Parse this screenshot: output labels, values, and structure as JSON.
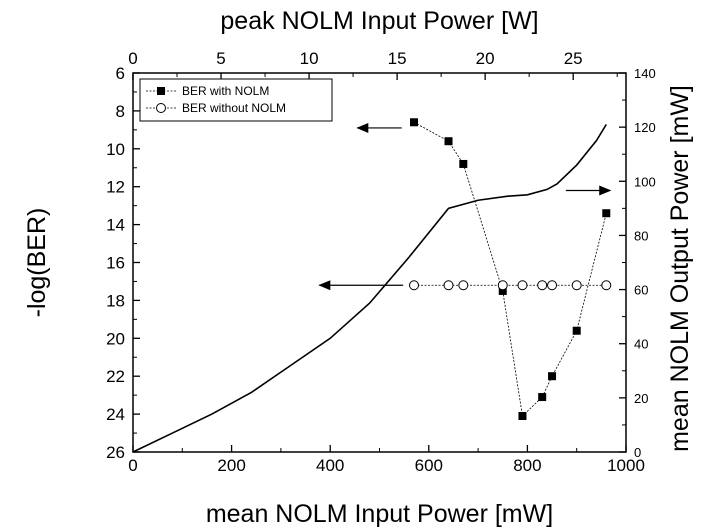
{
  "chart_data": {
    "type": "line",
    "x_bottom": {
      "label": "mean NOLM Input Power [mW]",
      "range": [
        0,
        1000
      ],
      "ticks": [
        0,
        200,
        400,
        600,
        800,
        1000
      ]
    },
    "x_top": {
      "label": "peak NOLM Input Power [W]",
      "range": [
        0,
        28
      ],
      "ticks": [
        0,
        5,
        10,
        15,
        20,
        25
      ]
    },
    "y_left": {
      "label": "-log(BER)",
      "range": [
        6,
        26
      ],
      "inverted": true,
      "ticks": [
        6,
        8,
        10,
        12,
        14,
        16,
        18,
        20,
        22,
        24,
        26
      ]
    },
    "y_right": {
      "label": "mean NOLM Output Power [mW]",
      "range": [
        0,
        140
      ],
      "ticks": [
        0,
        20,
        40,
        60,
        80,
        100,
        120,
        140
      ]
    },
    "series": [
      {
        "name": "BER with NOLM",
        "axis": "left",
        "marker": "filled-square",
        "x": [
          570,
          640,
          670,
          750,
          790,
          830,
          850,
          900,
          960
        ],
        "y": [
          8.6,
          9.6,
          10.8,
          17.5,
          24.1,
          23.1,
          22.0,
          19.6,
          13.4
        ]
      },
      {
        "name": "BER without NOLM",
        "axis": "left",
        "marker": "open-circle",
        "x": [
          570,
          640,
          670,
          750,
          790,
          830,
          850,
          900,
          960
        ],
        "y": [
          17.2,
          17.2,
          17.2,
          17.2,
          17.2,
          17.2,
          17.2,
          17.2,
          17.2
        ]
      },
      {
        "axis": "right",
        "marker": "none",
        "x": [
          0,
          80,
          160,
          240,
          320,
          400,
          480,
          560,
          640,
          700,
          760,
          800,
          840,
          860,
          900,
          940,
          960
        ],
        "y": [
          0,
          7,
          14,
          22,
          32,
          42,
          55,
          72,
          90,
          93,
          94.5,
          95,
          97,
          99,
          106,
          115,
          121
        ]
      }
    ],
    "legend": {
      "position": "top-left"
    },
    "annotations": [
      {
        "type": "arrow",
        "points_to": "left-axis",
        "from": {
          "x": 545,
          "y": 8.9
        },
        "to": {
          "x": 455,
          "y": 8.9
        }
      },
      {
        "type": "arrow",
        "points_to": "right-axis",
        "from": {
          "x": 878,
          "y": 12.2
        },
        "to": {
          "x": 968,
          "y": 12.2
        }
      },
      {
        "type": "arrow",
        "points_to": "left-axis",
        "from": {
          "x": 548,
          "y": 17.2
        },
        "to": {
          "x": 378,
          "y": 17.2
        }
      }
    ],
    "colors": {
      "axes": "#000000",
      "with_nolm": "#000000",
      "without_nolm": "#000000",
      "output_power": "#000000"
    }
  }
}
